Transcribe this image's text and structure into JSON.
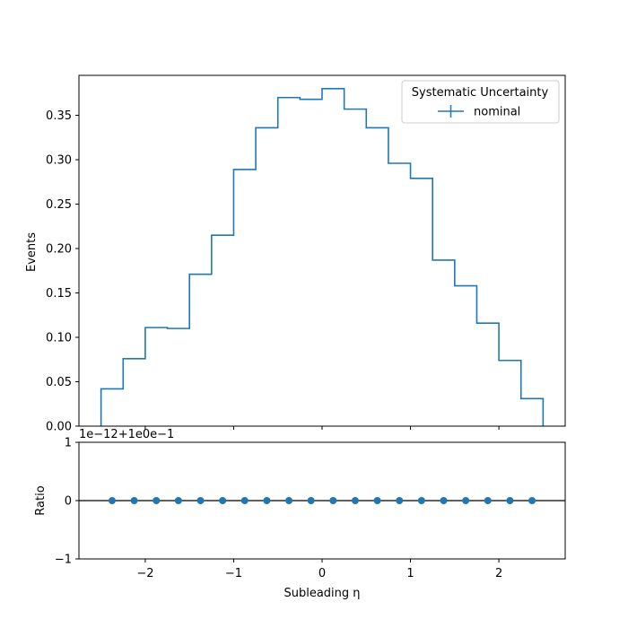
{
  "chart_data": [
    {
      "type": "histogram-step",
      "ylabel": "Events",
      "xlim": [
        -2.75,
        2.75
      ],
      "ylim": [
        0,
        0.395
      ],
      "y_ticks": [
        "0.00",
        "0.05",
        "0.10",
        "0.15",
        "0.20",
        "0.25",
        "0.30",
        "0.35"
      ],
      "y_tick_values": [
        0,
        0.05,
        0.1,
        0.15,
        0.2,
        0.25,
        0.3,
        0.35
      ],
      "bin_edges": [
        -2.5,
        -2.25,
        -2.0,
        -1.75,
        -1.5,
        -1.25,
        -1.0,
        -0.75,
        -0.5,
        -0.25,
        0.0,
        0.25,
        0.5,
        0.75,
        1.0,
        1.25,
        1.5,
        1.75,
        2.0,
        2.25,
        2.5
      ],
      "series": [
        {
          "name": "nominal",
          "color": "#1f77b4",
          "values": [
            0.042,
            0.076,
            0.111,
            0.11,
            0.171,
            0.215,
            0.289,
            0.336,
            0.37,
            0.368,
            0.38,
            0.357,
            0.336,
            0.296,
            0.279,
            0.187,
            0.158,
            0.116,
            0.074,
            0.031
          ]
        }
      ],
      "legend": {
        "title": "Systematic Uncertainty",
        "position": "upper right"
      }
    },
    {
      "type": "scatter",
      "ylabel": "Ratio",
      "xlabel": "Subleading η",
      "xlim": [
        -2.75,
        2.75
      ],
      "ylim": [
        -1,
        1
      ],
      "offset_text": "1e−12+1e0e−1",
      "x_ticks": [
        "−2",
        "−1",
        "0",
        "1",
        "2"
      ],
      "x_tick_values": [
        -2,
        -1,
        0,
        1,
        2
      ],
      "y_ticks": [
        "−1",
        "0",
        "1"
      ],
      "y_tick_values": [
        -1,
        0,
        1
      ],
      "reference_line": 0,
      "series": [
        {
          "name": "nominal",
          "color": "#1f77b4",
          "x": [
            -2.375,
            -2.125,
            -1.875,
            -1.625,
            -1.375,
            -1.125,
            -0.875,
            -0.625,
            -0.375,
            -0.125,
            0.125,
            0.375,
            0.625,
            0.875,
            1.125,
            1.375,
            1.625,
            1.875,
            2.125,
            2.375
          ],
          "y": [
            0,
            0,
            0,
            0,
            0,
            0,
            0,
            0,
            0,
            0,
            0,
            0,
            0,
            0,
            0,
            0,
            0,
            0,
            0,
            0
          ]
        }
      ]
    }
  ]
}
